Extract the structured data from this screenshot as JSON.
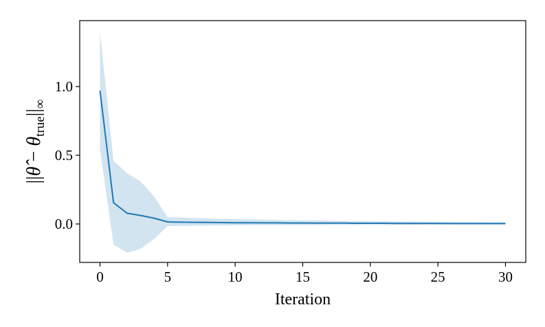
{
  "chart_data": {
    "type": "line",
    "xlabel": "Iteration",
    "ylabel": {
      "prefix": "||",
      "theta_hat": "θ̂",
      "minus": " − ",
      "theta": "θ",
      "subscript": "true",
      "suffix": "||",
      "norm_subscript": "∞"
    },
    "xlim": [
      -1.5,
      31.5
    ],
    "ylim": [
      -0.28,
      1.48
    ],
    "xticks": [
      0,
      5,
      10,
      15,
      20,
      25,
      30
    ],
    "yticks": [
      0.0,
      0.5,
      1.0
    ],
    "ytick_labels": [
      "0.0",
      "0.5",
      "1.0"
    ],
    "grid": false,
    "line_color": "#1f77b4",
    "band_color": "#1f77b4",
    "band_opacity": 0.2,
    "series": [
      {
        "x": [
          0,
          1,
          2,
          3,
          4,
          5,
          6,
          7,
          8,
          9,
          10,
          11,
          12,
          13,
          14,
          15,
          16,
          17,
          18,
          19,
          20,
          21,
          22,
          23,
          24,
          25,
          26,
          27,
          28,
          29,
          30
        ],
        "mean": [
          0.97,
          0.155,
          0.078,
          0.062,
          0.042,
          0.015,
          0.013,
          0.012,
          0.011,
          0.01,
          0.009,
          0.009,
          0.008,
          0.008,
          0.007,
          0.007,
          0.006,
          0.006,
          0.006,
          0.005,
          0.005,
          0.005,
          0.004,
          0.004,
          0.004,
          0.004,
          0.003,
          0.003,
          0.003,
          0.003,
          0.003
        ],
        "upper": [
          1.4,
          0.46,
          0.37,
          0.31,
          0.2,
          0.05,
          0.046,
          0.043,
          0.04,
          0.037,
          0.035,
          0.033,
          0.031,
          0.029,
          0.027,
          0.026,
          0.025,
          0.024,
          0.023,
          0.022,
          0.021,
          0.02,
          0.019,
          0.018,
          0.017,
          0.016,
          0.015,
          0.014,
          0.013,
          0.012,
          0.011
        ],
        "lower": [
          0.54,
          -0.15,
          -0.21,
          -0.18,
          -0.11,
          -0.015,
          -0.014,
          -0.013,
          -0.012,
          -0.011,
          -0.01,
          -0.01,
          -0.009,
          -0.009,
          -0.008,
          -0.008,
          -0.008,
          -0.007,
          -0.007,
          -0.007,
          -0.006,
          -0.006,
          -0.006,
          -0.006,
          -0.005,
          -0.005,
          -0.005,
          -0.005,
          -0.005,
          -0.005,
          -0.005
        ]
      }
    ]
  }
}
